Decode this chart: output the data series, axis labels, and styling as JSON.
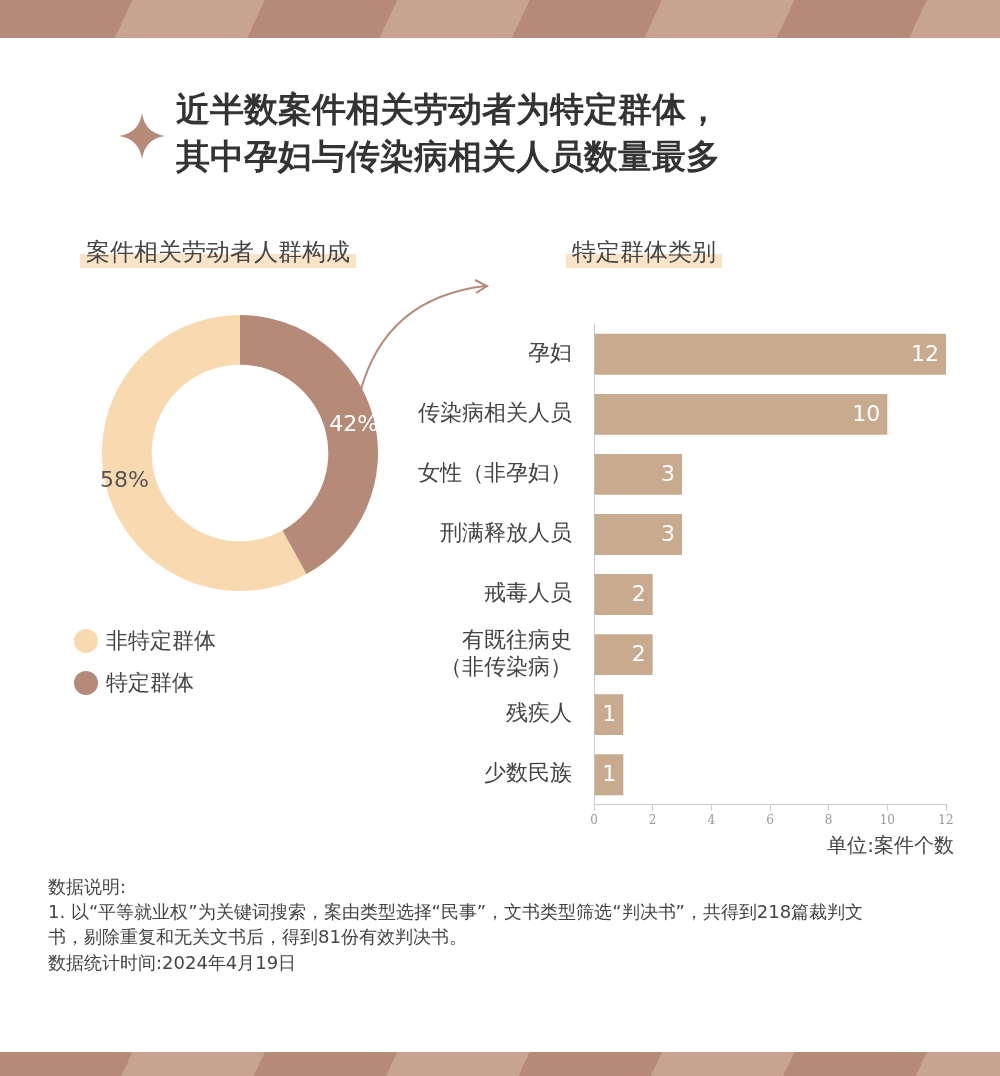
{
  "chart_data": [
    {
      "type": "donut",
      "title": "近半数案件相关劳动者为特定群体，其中孕妇与传染病相关人员数量最多",
      "subtitle": "案件相关劳动者人群构成",
      "categories": [
        "非特定群体",
        "特定群体"
      ],
      "values": [
        58,
        42
      ],
      "colors": [
        "#f9d9b0",
        "#b58a78"
      ],
      "value_labels": [
        "58%",
        "42%"
      ],
      "legend": "bottom"
    },
    {
      "type": "bar",
      "orientation": "horizontal",
      "subtitle": "特定群体类别",
      "categories": [
        "孕妇",
        "传染病相关人员",
        "女性（非孕妇）",
        "刑满释放人员",
        "戒毒人员",
        "有既往病史（非传染病）",
        "残疾人",
        "少数民族"
      ],
      "values": [
        12,
        10,
        3,
        3,
        2,
        2,
        1,
        1
      ],
      "color": "#c8aa8e",
      "xlim": [
        0,
        12
      ],
      "xticks": [
        0,
        2,
        4,
        6,
        8,
        10,
        12
      ],
      "data_labels": true,
      "xlabel": "单位:案件个数",
      "annotations": [
        "数据说明:",
        "1. 以“平等就业权”为关键词搜索，案由类型选择“民事”，文书类型筛选“判决书”，共得到218篇裁判文书，剔除重复和无关文书后，得到81份有效判决书。",
        "数据统计时间:2024年4月19日"
      ]
    }
  ]
}
